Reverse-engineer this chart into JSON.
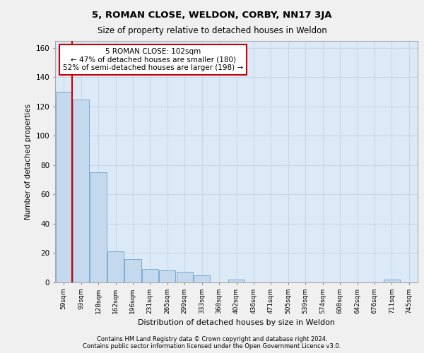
{
  "title1": "5, ROMAN CLOSE, WELDON, CORBY, NN17 3JA",
  "title2": "Size of property relative to detached houses in Weldon",
  "xlabel": "Distribution of detached houses by size in Weldon",
  "ylabel": "Number of detached properties",
  "categories": [
    "59sqm",
    "93sqm",
    "128sqm",
    "162sqm",
    "196sqm",
    "231sqm",
    "265sqm",
    "299sqm",
    "333sqm",
    "368sqm",
    "402sqm",
    "436sqm",
    "471sqm",
    "505sqm",
    "539sqm",
    "574sqm",
    "608sqm",
    "642sqm",
    "676sqm",
    "711sqm",
    "745sqm"
  ],
  "values": [
    130,
    125,
    75,
    21,
    16,
    9,
    8,
    7,
    5,
    0,
    2,
    0,
    0,
    0,
    0,
    0,
    0,
    0,
    0,
    2,
    0
  ],
  "bar_color": "#c5d9ee",
  "bar_edge_color": "#7aadd0",
  "background_color": "#dce9f7",
  "grid_color": "#c8d8ea",
  "vline_color": "#cc0000",
  "annotation_text": "5 ROMAN CLOSE: 102sqm\n← 47% of detached houses are smaller (180)\n52% of semi-detached houses are larger (198) →",
  "annotation_box_color": "#ffffff",
  "annotation_box_edge": "#cc0000",
  "ylim": [
    0,
    165
  ],
  "yticks": [
    0,
    20,
    40,
    60,
    80,
    100,
    120,
    140,
    160
  ],
  "footer1": "Contains HM Land Registry data © Crown copyright and database right 2024.",
  "footer2": "Contains public sector information licensed under the Open Government Licence v3.0."
}
